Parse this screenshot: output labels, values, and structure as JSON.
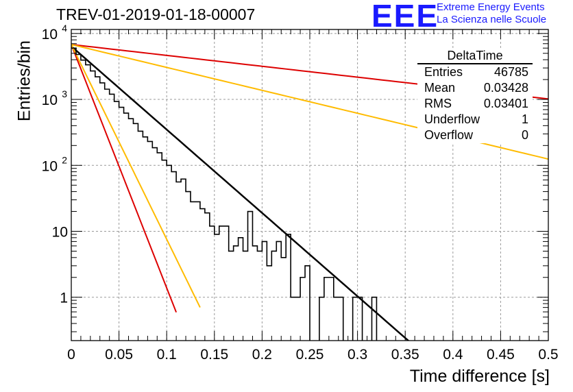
{
  "title": "TREV-01-2019-01-18-00007",
  "logo": {
    "text": "EEE",
    "line1": "Extreme Energy Events",
    "line2": "La Scienza nelle Scuole"
  },
  "stats": {
    "name": "DeltaTime",
    "rows": [
      {
        "label": "Entries",
        "value": "46785"
      },
      {
        "label": "Mean",
        "value": "0.03428"
      },
      {
        "label": "RMS",
        "value": "0.03401"
      },
      {
        "label": "Underflow",
        "value": "1"
      },
      {
        "label": "Overflow",
        "value": "0"
      }
    ]
  },
  "chart_data": {
    "type": "line",
    "xlabel": "Time difference [s]",
    "ylabel": "Entries/bin",
    "xlim": [
      0,
      0.5
    ],
    "ylim": [
      0.22,
      11500
    ],
    "yscale": "log",
    "grid": true,
    "xticks": [
      "0",
      "0.05",
      "0.1",
      "0.15",
      "0.2",
      "0.25",
      "0.3",
      "0.35",
      "0.4",
      "0.45",
      "0.5"
    ],
    "yticks": [
      {
        "value": 1,
        "label": "1"
      },
      {
        "value": 10,
        "label": "10"
      },
      {
        "value": 100,
        "label": "10",
        "exp": "2"
      },
      {
        "value": 1000,
        "label": "10",
        "exp": "3"
      },
      {
        "value": 10000,
        "label": "10",
        "exp": "4"
      }
    ],
    "colors": {
      "histogram": "#000000",
      "fit": "#000000",
      "red": "#dd0000",
      "orange": "#ffbb00"
    },
    "histogram": {
      "bin_width": 0.005,
      "x_start": 0,
      "counts": [
        6000,
        4800,
        3950,
        3350,
        2700,
        2200,
        1780,
        1430,
        1200,
        930,
        760,
        620,
        510,
        430,
        330,
        270,
        230,
        185,
        155,
        120,
        100,
        80,
        56,
        62,
        40,
        28,
        28,
        22,
        19,
        12,
        9,
        12,
        12,
        5,
        6,
        8,
        5,
        20,
        6,
        5,
        7,
        3,
        5,
        7,
        4,
        9,
        1,
        1,
        2,
        3,
        0,
        0,
        1,
        2,
        2,
        1,
        1,
        0,
        0,
        1,
        1,
        0,
        0,
        1,
        0,
        0,
        0,
        0,
        0,
        0,
        0,
        0
      ]
    },
    "lines": [
      {
        "role": "fit",
        "color": "#000000",
        "width": 2.5,
        "A": 6400,
        "lambda": 29.1,
        "x_range": [
          0,
          0.36
        ]
      },
      {
        "role": "red-steep",
        "color": "#dd0000",
        "width": 2,
        "A": 6800,
        "lambda": 85,
        "x_range": [
          0,
          0.11
        ]
      },
      {
        "role": "orange-steep",
        "color": "#ffbb00",
        "width": 2,
        "A": 6800,
        "lambda": 68,
        "x_range": [
          0,
          0.135
        ]
      },
      {
        "role": "red-shallow",
        "color": "#dd0000",
        "width": 2,
        "A": 6800,
        "lambda": 3.8,
        "x_range": [
          0,
          0.5
        ]
      },
      {
        "role": "orange-shallow",
        "color": "#ffbb00",
        "width": 2,
        "A": 6800,
        "lambda": 8.0,
        "x_range": [
          0,
          0.5
        ]
      }
    ]
  }
}
